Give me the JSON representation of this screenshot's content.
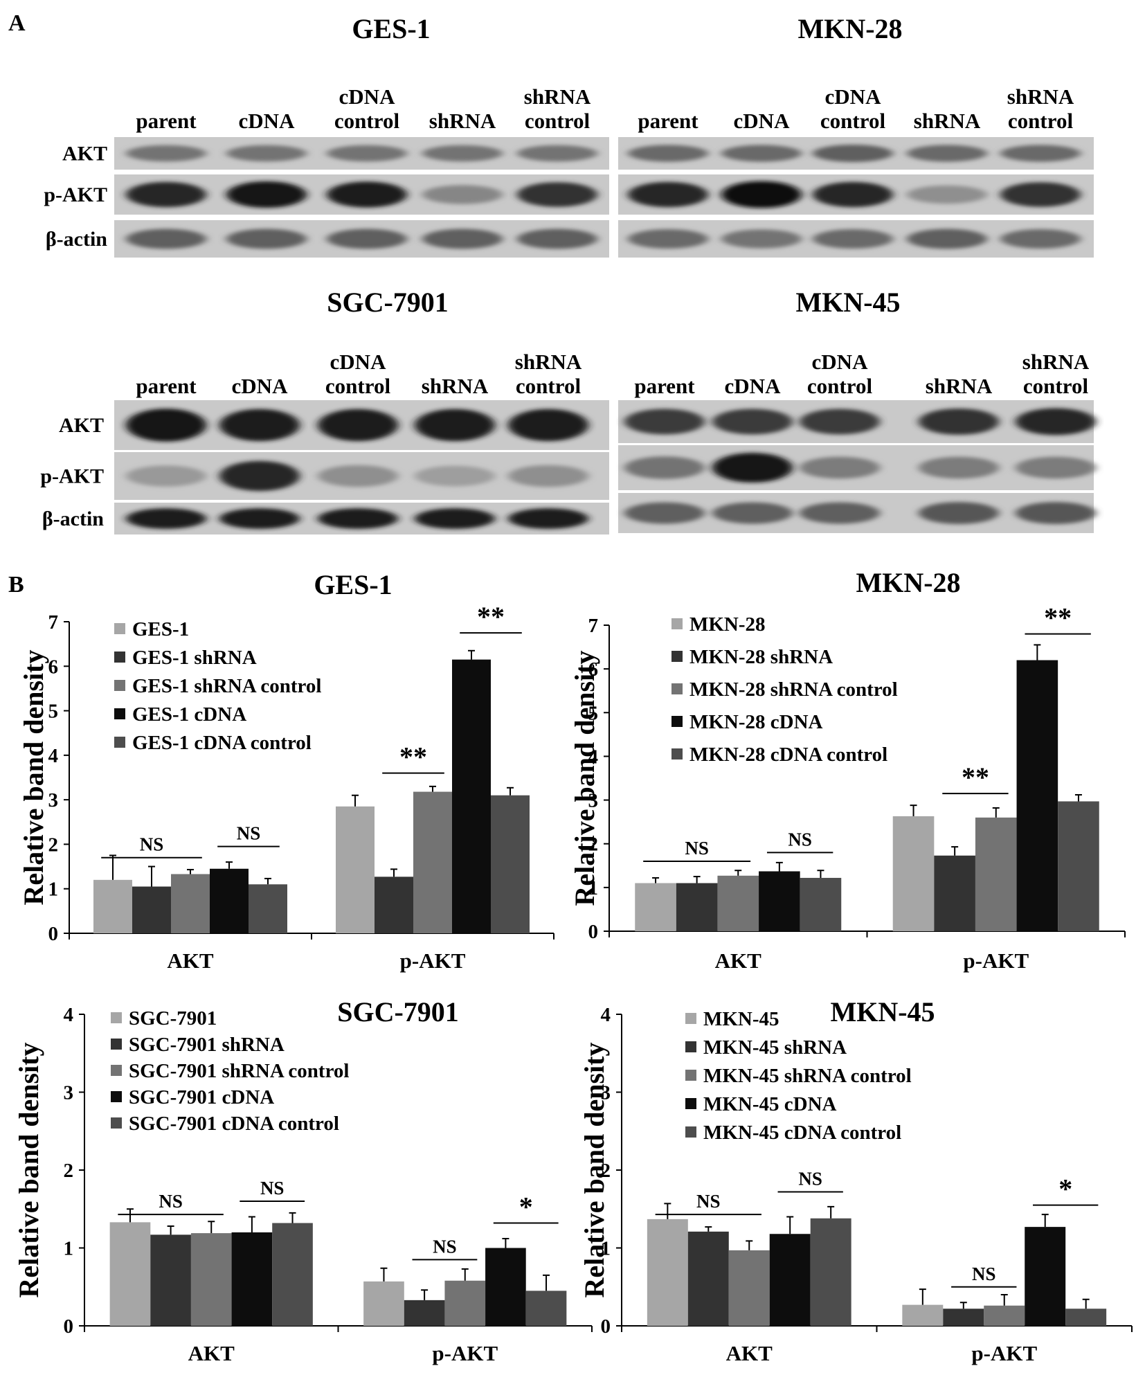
{
  "panel_labels": {
    "a": "A",
    "b": "B"
  },
  "blots": [
    {
      "title": "GES-1",
      "lanes": [
        "parent",
        "cDNA",
        "cDNA control",
        "shRNA",
        "shRNA control"
      ],
      "rows": [
        "AKT",
        "p-AKT",
        "β-actin"
      ]
    },
    {
      "title": "MKN-28",
      "lanes": [
        "parent",
        "cDNA",
        "cDNA control",
        "shRNA",
        "shRNA control"
      ],
      "rows": []
    },
    {
      "title": "SGC-7901",
      "lanes": [
        "parent",
        "cDNA",
        "cDNA control",
        "shRNA",
        "shRNA control"
      ],
      "rows": [
        "AKT",
        "p-AKT",
        "β-actin"
      ]
    },
    {
      "title": "MKN-45",
      "lanes": [
        "parent",
        "cDNA",
        "cDNA control",
        "shRNA",
        "shRNA control"
      ],
      "rows": []
    }
  ],
  "series_colors": [
    "#a6a6a6",
    "#333333",
    "#737373",
    "#0d0d0d",
    "#4d4d4d"
  ],
  "chart_data": [
    {
      "type": "bar",
      "title": "GES-1",
      "ylabel": "Relative band density",
      "ylim": [
        0,
        7
      ],
      "yticks": [
        "0",
        "1",
        "2",
        "3",
        "4",
        "5",
        "6",
        "7"
      ],
      "categories": [
        "AKT",
        "p-AKT"
      ],
      "series": [
        {
          "name": "GES-1",
          "values": [
            1.2,
            2.85
          ],
          "errors": [
            0.55,
            0.25
          ]
        },
        {
          "name": "GES-1 shRNA",
          "values": [
            1.05,
            1.27
          ],
          "errors": [
            0.45,
            0.17
          ]
        },
        {
          "name": "GES-1 shRNA control",
          "values": [
            1.33,
            3.18
          ],
          "errors": [
            0.1,
            0.12
          ]
        },
        {
          "name": "GES-1 cDNA",
          "values": [
            1.45,
            6.15
          ],
          "errors": [
            0.15,
            0.2
          ]
        },
        {
          "name": "GES-1 cDNA control",
          "values": [
            1.1,
            3.1
          ],
          "errors": [
            0.13,
            0.17
          ]
        }
      ],
      "annotations": [
        {
          "text": "NS",
          "category": 0,
          "from": 0,
          "to": 2,
          "y": 1.7
        },
        {
          "text": "NS",
          "category": 0,
          "from": 3,
          "to": 4,
          "y": 1.95
        },
        {
          "text": "**",
          "category": 1,
          "from": 1,
          "to": 2,
          "y": 3.6
        },
        {
          "text": "**",
          "category": 1,
          "from": 3,
          "to": 4,
          "y": 6.75
        }
      ]
    },
    {
      "type": "bar",
      "title": "MKN-28",
      "ylabel": "Relative band density",
      "ylim": [
        0,
        7
      ],
      "yticks": [
        "0",
        "1",
        "2",
        "3",
        "4",
        "5",
        "6",
        "7"
      ],
      "categories": [
        "AKT",
        "p-AKT"
      ],
      "series": [
        {
          "name": "MKN-28",
          "values": [
            1.1,
            2.63
          ],
          "errors": [
            0.12,
            0.25
          ]
        },
        {
          "name": "MKN-28 shRNA",
          "values": [
            1.1,
            1.73
          ],
          "errors": [
            0.15,
            0.2
          ]
        },
        {
          "name": "MKN-28 shRNA control",
          "values": [
            1.27,
            2.6
          ],
          "errors": [
            0.12,
            0.22
          ]
        },
        {
          "name": "MKN-28 cDNA",
          "values": [
            1.37,
            6.2
          ],
          "errors": [
            0.2,
            0.35
          ]
        },
        {
          "name": "MKN-28 cDNA control",
          "values": [
            1.22,
            2.97
          ],
          "errors": [
            0.17,
            0.15
          ]
        }
      ],
      "annotations": [
        {
          "text": "NS",
          "category": 0,
          "from": 0,
          "to": 2,
          "y": 1.6
        },
        {
          "text": "NS",
          "category": 0,
          "from": 3,
          "to": 4,
          "y": 1.8
        },
        {
          "text": "**",
          "category": 1,
          "from": 1,
          "to": 2,
          "y": 3.15
        },
        {
          "text": "**",
          "category": 1,
          "from": 3,
          "to": 4,
          "y": 6.8
        }
      ]
    },
    {
      "type": "bar",
      "title": "SGC-7901",
      "ylabel": "Relative band density",
      "ylim": [
        0,
        4
      ],
      "yticks": [
        "0",
        "1",
        "2",
        "3",
        "4"
      ],
      "categories": [
        "AKT",
        "p-AKT"
      ],
      "series": [
        {
          "name": "SGC-7901",
          "values": [
            1.33,
            0.57
          ],
          "errors": [
            0.17,
            0.17
          ]
        },
        {
          "name": "SGC-7901 shRNA",
          "values": [
            1.17,
            0.33
          ],
          "errors": [
            0.11,
            0.13
          ]
        },
        {
          "name": "SGC-7901 shRNA control",
          "values": [
            1.19,
            0.58
          ],
          "errors": [
            0.15,
            0.15
          ]
        },
        {
          "name": "SGC-7901 cDNA",
          "values": [
            1.2,
            1.0
          ],
          "errors": [
            0.2,
            0.12
          ]
        },
        {
          "name": "SGC-7901 cDNA control",
          "values": [
            1.32,
            0.45
          ],
          "errors": [
            0.13,
            0.2
          ]
        }
      ],
      "annotations": [
        {
          "text": "NS",
          "category": 0,
          "from": 0,
          "to": 2,
          "y": 1.43
        },
        {
          "text": "NS",
          "category": 0,
          "from": 3,
          "to": 4,
          "y": 1.6
        },
        {
          "text": "NS",
          "category": 1,
          "from": 1,
          "to": 2,
          "y": 0.85
        },
        {
          "text": "*",
          "category": 1,
          "from": 3,
          "to": 4,
          "y": 1.32
        }
      ]
    },
    {
      "type": "bar",
      "title": "MKN-45",
      "ylabel": "Relative band density",
      "ylim": [
        0,
        4
      ],
      "yticks": [
        "0",
        "1",
        "2",
        "3",
        "4"
      ],
      "categories": [
        "AKT",
        "p-AKT"
      ],
      "series": [
        {
          "name": "MKN-45",
          "values": [
            1.37,
            0.27
          ],
          "errors": [
            0.2,
            0.2
          ]
        },
        {
          "name": "MKN-45 shRNA",
          "values": [
            1.21,
            0.22
          ],
          "errors": [
            0.06,
            0.08
          ]
        },
        {
          "name": "MKN-45 shRNA control",
          "values": [
            0.97,
            0.26
          ],
          "errors": [
            0.12,
            0.14
          ]
        },
        {
          "name": "MKN-45 cDNA",
          "values": [
            1.18,
            1.27
          ],
          "errors": [
            0.22,
            0.16
          ]
        },
        {
          "name": "MKN-45 cDNA control",
          "values": [
            1.38,
            0.22
          ],
          "errors": [
            0.15,
            0.12
          ]
        }
      ],
      "annotations": [
        {
          "text": "NS",
          "category": 0,
          "from": 0,
          "to": 2,
          "y": 1.43
        },
        {
          "text": "NS",
          "category": 0,
          "from": 3,
          "to": 4,
          "y": 1.72
        },
        {
          "text": "NS",
          "category": 1,
          "from": 1,
          "to": 2,
          "y": 0.5
        },
        {
          "text": "*",
          "category": 1,
          "from": 3,
          "to": 4,
          "y": 1.55
        }
      ]
    }
  ]
}
